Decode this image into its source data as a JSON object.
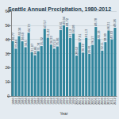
{
  "chart_data": {
    "type": "bar",
    "title": "Seattle Annual Precipitation, 1980-2012",
    "x_label": "Year",
    "categories": [
      "1980",
      "1981",
      "1982",
      "1983",
      "1984",
      "1985",
      "1986",
      "1987",
      "1988",
      "1989",
      "1990",
      "1991",
      "1992",
      "1993",
      "1994",
      "1995",
      "1996",
      "1997",
      "1998",
      "1999",
      "2000",
      "2001",
      "2002",
      "2003",
      "2004",
      "2005",
      "2006",
      "2007",
      "2008",
      "2009",
      "2010",
      "2011",
      "2012"
    ],
    "values": [
      38.77,
      33.48,
      42.34,
      38.69,
      34.5,
      44.73,
      31.07,
      28.86,
      31.74,
      35.32,
      47.57,
      41.22,
      36.33,
      33.52,
      35.06,
      46.61,
      49.94,
      48.72,
      41.12,
      44.08,
      28.62,
      37.91,
      30.72,
      41.13,
      29.81,
      36.17,
      48.78,
      40.18,
      32.11,
      38.08,
      46.31,
      40.03,
      48.26
    ],
    "color": "#31859c",
    "ylim": [
      0,
      60
    ],
    "yticks": [
      0,
      10,
      20,
      30,
      40,
      50,
      60
    ],
    "grid": true,
    "data_labels": true
  }
}
